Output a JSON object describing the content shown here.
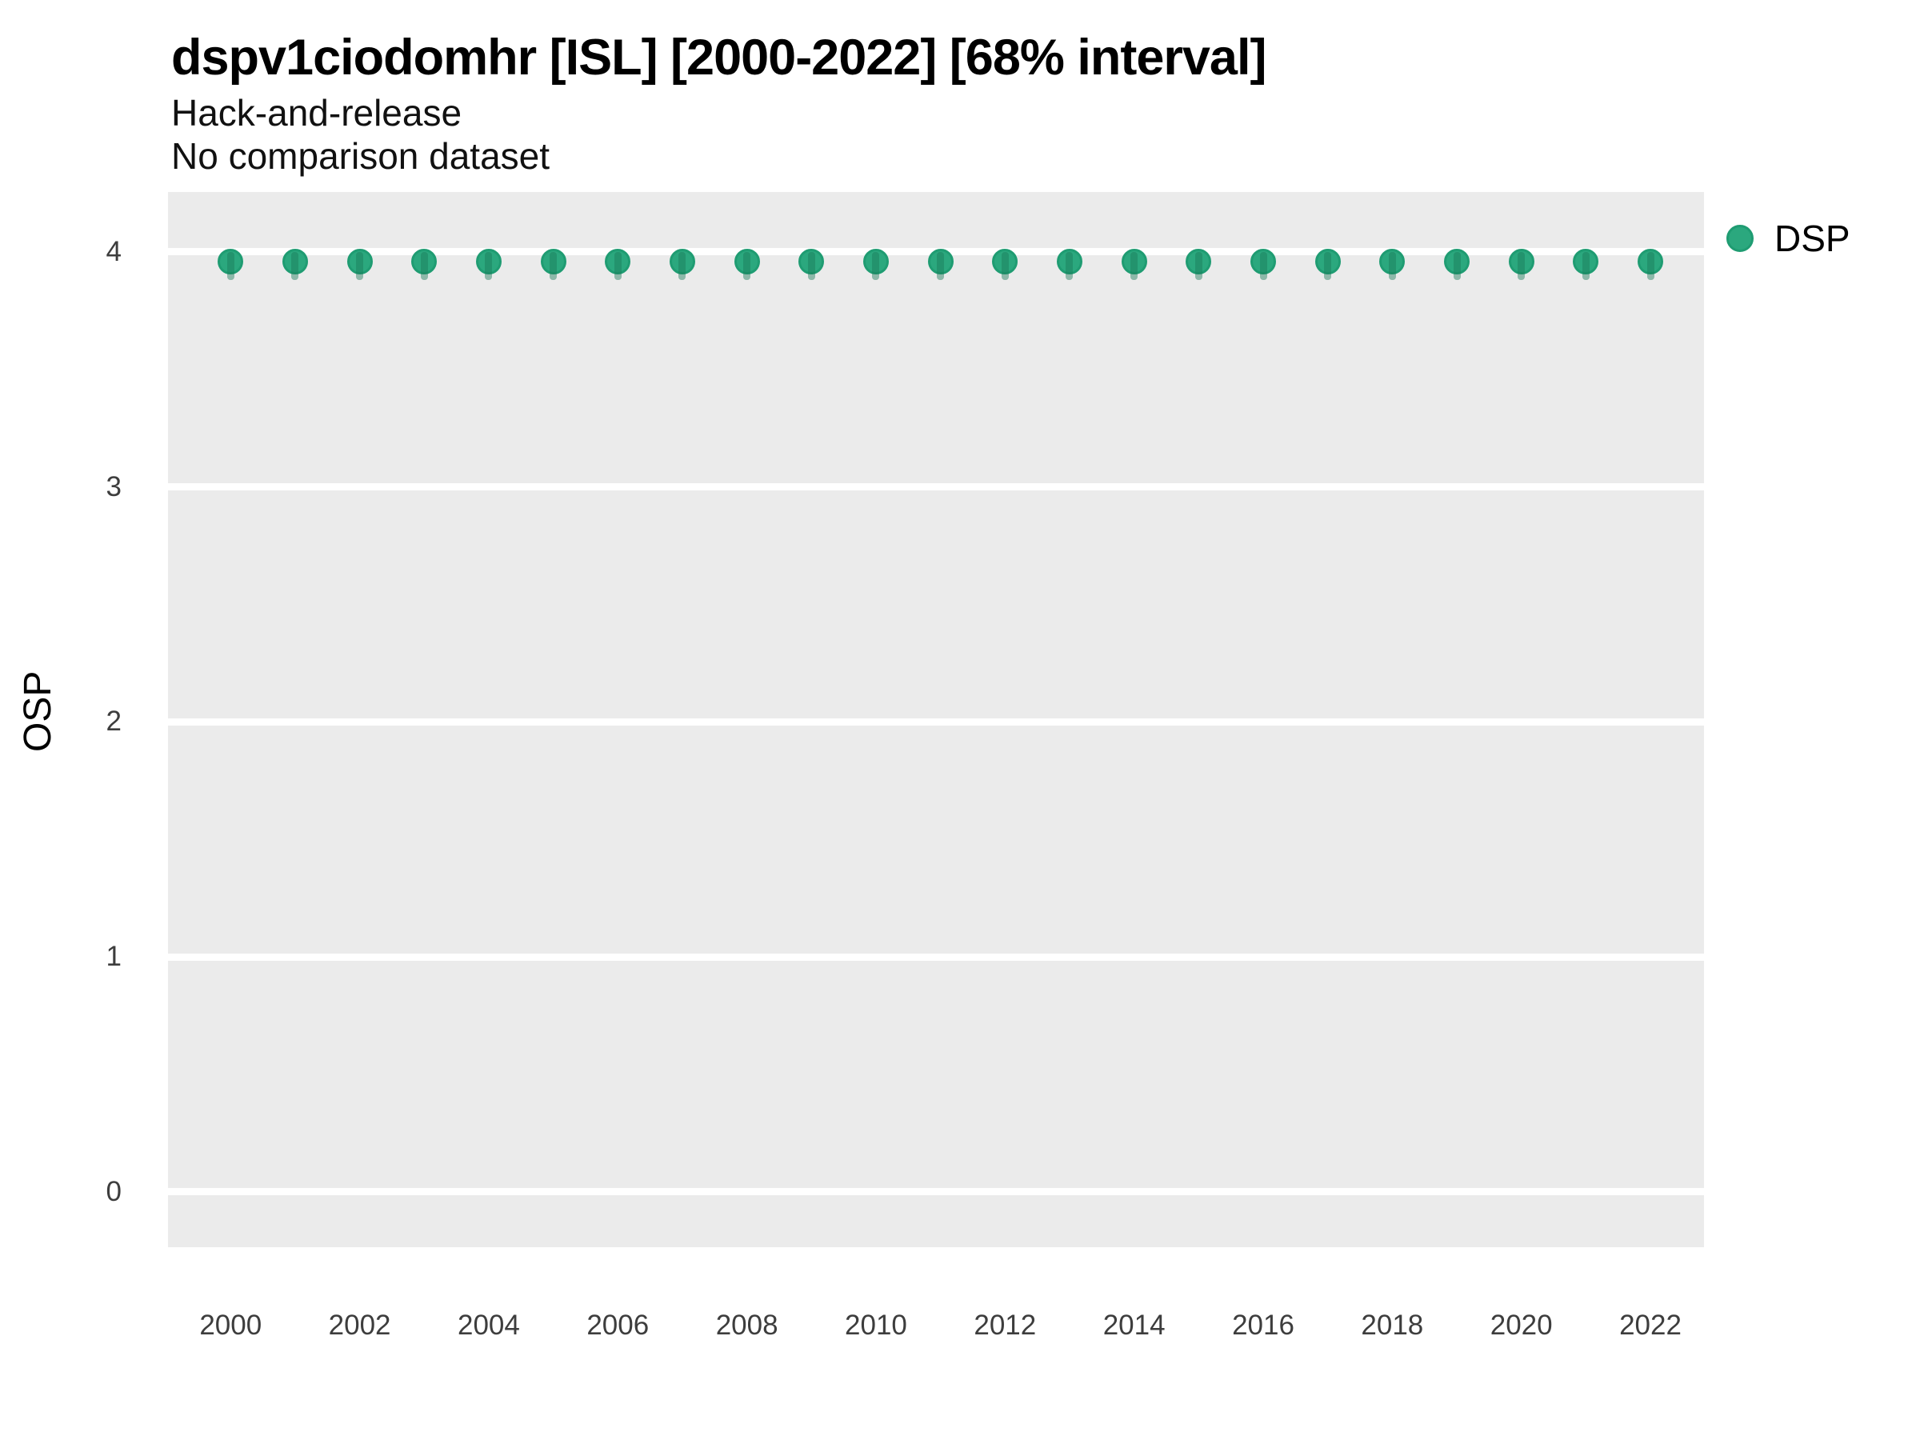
{
  "header": {
    "title": "dspv1ciodomhr [ISL] [2000-2022] [68% interval]",
    "subtitle1": "Hack-and-release",
    "subtitle2": "No comparison dataset"
  },
  "chart_data": {
    "type": "scatter",
    "title": "dspv1ciodomhr [ISL] [2000-2022] [68% interval]",
    "subtitle": [
      "Hack-and-release",
      "No comparison dataset"
    ],
    "xlabel": "",
    "ylabel": "OSP",
    "x": [
      2000,
      2001,
      2002,
      2003,
      2004,
      2005,
      2006,
      2007,
      2008,
      2009,
      2010,
      2011,
      2012,
      2013,
      2014,
      2015,
      2016,
      2017,
      2018,
      2019,
      2020,
      2021,
      2022
    ],
    "series": [
      {
        "name": "DSP",
        "values": [
          3.96,
          3.96,
          3.96,
          3.96,
          3.96,
          3.96,
          3.96,
          3.96,
          3.96,
          3.96,
          3.96,
          3.96,
          3.96,
          3.96,
          3.96,
          3.96,
          3.96,
          3.96,
          3.96,
          3.96,
          3.96,
          3.96,
          3.96
        ],
        "interval_low": [
          3.88,
          3.88,
          3.88,
          3.88,
          3.88,
          3.88,
          3.88,
          3.88,
          3.88,
          3.88,
          3.88,
          3.88,
          3.88,
          3.88,
          3.88,
          3.88,
          3.88,
          3.88,
          3.88,
          3.88,
          3.88,
          3.88,
          3.88
        ],
        "interval_high": [
          4.0,
          4.0,
          4.0,
          4.0,
          4.0,
          4.0,
          4.0,
          4.0,
          4.0,
          4.0,
          4.0,
          4.0,
          4.0,
          4.0,
          4.0,
          4.0,
          4.0,
          4.0,
          4.0,
          4.0,
          4.0,
          4.0,
          4.0
        ]
      }
    ],
    "yticks": [
      0,
      1,
      2,
      3,
      4
    ],
    "xticks": [
      2000,
      2002,
      2004,
      2006,
      2008,
      2010,
      2012,
      2014,
      2016,
      2018,
      2020,
      2022
    ],
    "xlim": [
      1999.03,
      2022.83
    ],
    "ylim": [
      -0.235,
      4.255
    ],
    "grid": "horizontal-major-only",
    "legend": {
      "position": "right-top",
      "entries": [
        {
          "label": "DSP",
          "color": "#2BA87E"
        }
      ]
    },
    "colors": {
      "point_fill": "#2BA87E",
      "point_stroke": "#1F9C72",
      "interval_rgba": "rgba(27,122,88,0.45)",
      "panel_bg": "#EBEBEB",
      "grid_line": "#FFFFFF",
      "tick_label": "#3d3d3d",
      "title_color": "#000000"
    }
  }
}
